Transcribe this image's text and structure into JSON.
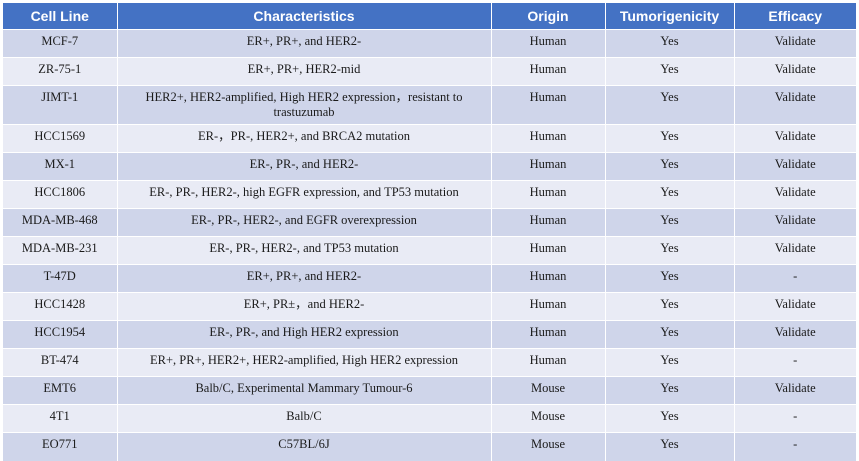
{
  "headers": [
    "Cell Line",
    "Characteristics",
    "Origin",
    "Tumorigenicity",
    "Efficacy"
  ],
  "rows": [
    {
      "cell_line": "MCF-7",
      "characteristics": "ER+, PR+, and HER2-",
      "origin": "Human",
      "tumorigenicity": "Yes",
      "efficacy": "Validate"
    },
    {
      "cell_line": "ZR-75-1",
      "characteristics": "ER+, PR+, HER2-mid",
      "origin": "Human",
      "tumorigenicity": "Yes",
      "efficacy": "Validate"
    },
    {
      "cell_line": "JIMT-1",
      "characteristics": "HER2+, HER2-amplified, High HER2 expression，resistant to trastuzumab",
      "origin": "Human",
      "tumorigenicity": "Yes",
      "efficacy": "Validate"
    },
    {
      "cell_line": "HCC1569",
      "characteristics": "ER-，PR-, HER2+, and BRCA2 mutation",
      "origin": "Human",
      "tumorigenicity": "Yes",
      "efficacy": "Validate"
    },
    {
      "cell_line": "MX-1",
      "characteristics": "ER-, PR-, and HER2-",
      "origin": "Human",
      "tumorigenicity": "Yes",
      "efficacy": "Validate"
    },
    {
      "cell_line": "HCC1806",
      "characteristics": "ER-, PR-, HER2-, high EGFR expression, and TP53 mutation",
      "origin": "Human",
      "tumorigenicity": "Yes",
      "efficacy": "Validate"
    },
    {
      "cell_line": "MDA-MB-468",
      "characteristics": "ER-, PR-, HER2-, and EGFR overexpression",
      "origin": "Human",
      "tumorigenicity": "Yes",
      "efficacy": "Validate"
    },
    {
      "cell_line": "MDA-MB-231",
      "characteristics": "ER-, PR-, HER2-, and TP53 mutation",
      "origin": "Human",
      "tumorigenicity": "Yes",
      "efficacy": "Validate"
    },
    {
      "cell_line": "T-47D",
      "characteristics": "ER+, PR+, and HER2-",
      "origin": "Human",
      "tumorigenicity": "Yes",
      "efficacy": "-"
    },
    {
      "cell_line": "HCC1428",
      "characteristics": "ER+, PR±，and HER2-",
      "origin": "Human",
      "tumorigenicity": "Yes",
      "efficacy": "Validate"
    },
    {
      "cell_line": "HCC1954",
      "characteristics": "ER-, PR-, and High HER2 expression",
      "origin": "Human",
      "tumorigenicity": "Yes",
      "efficacy": "Validate"
    },
    {
      "cell_line": "BT-474",
      "characteristics": "ER+, PR+, HER2+, HER2-amplified, High HER2 expression",
      "origin": "Human",
      "tumorigenicity": "Yes",
      "efficacy": "-"
    },
    {
      "cell_line": "EMT6",
      "characteristics": "Balb/C,  Experimental Mammary Tumour-6",
      "origin": "Mouse",
      "tumorigenicity": "Yes",
      "efficacy": "Validate"
    },
    {
      "cell_line": "4T1",
      "characteristics": "Balb/C",
      "origin": "Mouse",
      "tumorigenicity": "Yes",
      "efficacy": "-"
    },
    {
      "cell_line": "EO771",
      "characteristics": "C57BL/6J",
      "origin": "Mouse",
      "tumorigenicity": "Yes",
      "efficacy": "-"
    }
  ]
}
